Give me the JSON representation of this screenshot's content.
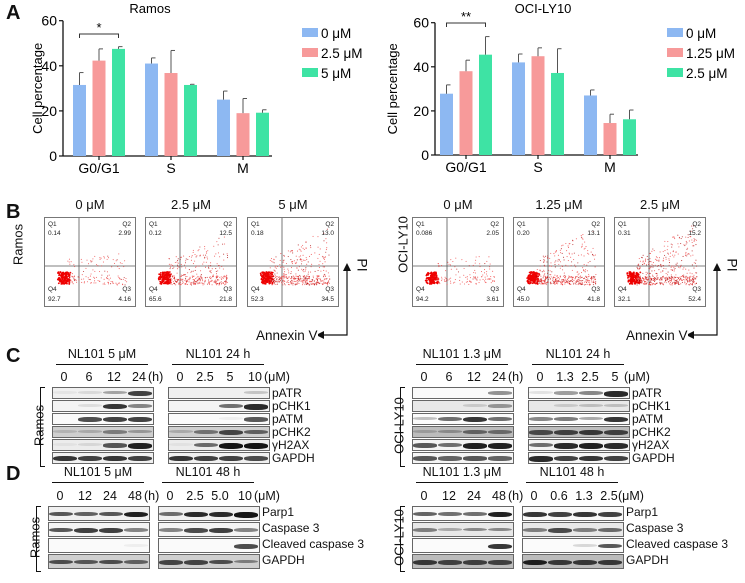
{
  "panels": {
    "A": "A",
    "B": "B",
    "C": "C",
    "D": "D"
  },
  "chart_data": [
    {
      "type": "bar",
      "title": "Ramos",
      "xlabel": "",
      "ylabel": "Cell percentage",
      "ylim": [
        0,
        60
      ],
      "yticks": [
        0,
        20,
        40,
        60
      ],
      "categories": [
        "G0/G1",
        "S",
        "M"
      ],
      "series": [
        {
          "name": "0 μM",
          "color": "#8db8f2",
          "values": [
            31.5,
            41,
            25
          ],
          "errors": [
            5.5,
            2.5,
            3.8
          ]
        },
        {
          "name": "2.5 μM",
          "color": "#f79a9a",
          "values": [
            42.3,
            36.8,
            19
          ],
          "errors": [
            5.2,
            10,
            6.5
          ]
        },
        {
          "name": "5 μM",
          "color": "#3ee3a4",
          "values": [
            47.5,
            31.5,
            19.2
          ],
          "errors": [
            1,
            0.3,
            1.3
          ]
        }
      ],
      "significance": [
        {
          "group": "G0/G1",
          "from": 0,
          "to": 2,
          "label": "*"
        }
      ],
      "legend": "top-right",
      "grid": false
    },
    {
      "type": "bar",
      "title": "OCI-LY10",
      "xlabel": "",
      "ylabel": "Cell percentage",
      "ylim": [
        0,
        60
      ],
      "yticks": [
        0,
        20,
        40,
        60
      ],
      "categories": [
        "G0/G1",
        "S",
        "M"
      ],
      "series": [
        {
          "name": "0 μM",
          "color": "#8db8f2",
          "values": [
            27.8,
            42,
            27
          ],
          "errors": [
            4,
            3.8,
            2.5
          ]
        },
        {
          "name": "1.25 μM",
          "color": "#f79a9a",
          "values": [
            38,
            44.8,
            14.5
          ],
          "errors": [
            5,
            3.8,
            4
          ]
        },
        {
          "name": "2.5 μM",
          "color": "#3ee3a4",
          "values": [
            45.5,
            37.2,
            16.2
          ],
          "errors": [
            8.2,
            11,
            4.2
          ]
        }
      ],
      "significance": [
        {
          "group": "G0/G1",
          "from": 0,
          "to": 2,
          "label": "**"
        }
      ],
      "legend": "top-right",
      "grid": false
    }
  ],
  "flow": {
    "x_axis_label": "Annexin V",
    "y_axis_label": "PI",
    "groups": [
      {
        "cell_line": "Ramos",
        "plots": [
          {
            "title": "0 μM",
            "Q1": "0.14",
            "Q2": "2.99",
            "Q3": "4.16",
            "Q4": "92.7",
            "density": 0.15
          },
          {
            "title": "2.5 μM",
            "Q1": "0.12",
            "Q2": "12.5",
            "Q3": "21.8",
            "Q4": "65.6",
            "density": 0.55
          },
          {
            "title": "5 μM",
            "Q1": "0.18",
            "Q2": "13.0",
            "Q3": "34.5",
            "Q4": "52.3",
            "density": 0.7
          }
        ]
      },
      {
        "cell_line": "OCI-LY10",
        "plots": [
          {
            "title": "0 μM",
            "Q1": "0.086",
            "Q2": "2.05",
            "Q3": "3.61",
            "Q4": "94.2",
            "density": 0.12
          },
          {
            "title": "1.25 μM",
            "Q1": "0.20",
            "Q2": "13.1",
            "Q3": "41.8",
            "Q4": "45.0",
            "density": 0.7
          },
          {
            "title": "2.5 μM",
            "Q1": "0.31",
            "Q2": "15.2",
            "Q3": "52.4",
            "Q4": "32.1",
            "density": 0.85
          }
        ]
      }
    ],
    "quadrant_names": {
      "q1": "Q1",
      "q2": "Q2",
      "q3": "Q3",
      "q4": "Q4"
    }
  },
  "westernC": {
    "groups": [
      {
        "cell_line": "Ramos",
        "left": {
          "header": "NL101 5 μM",
          "lanes": [
            "0",
            "6",
            "12",
            "24"
          ],
          "unit": "(h)"
        },
        "right": {
          "header": "NL101 24 h",
          "lanes": [
            "0",
            "2.5",
            "5",
            "10"
          ],
          "unit": "(μM)"
        },
        "proteins": [
          "pATR",
          "pCHK1",
          "pATM",
          "pCHK2",
          "γH2AX",
          "GAPDH"
        ]
      },
      {
        "cell_line": "OCI-LY10",
        "left": {
          "header": "NL101  1.3 μM",
          "lanes": [
            "0",
            "6",
            "12",
            "24"
          ],
          "unit": "(h)"
        },
        "right": {
          "header": "NL101 24 h",
          "lanes": [
            "0",
            "1.3",
            "2.5",
            "5"
          ],
          "unit": "(μM)"
        },
        "proteins": [
          "pATR",
          "pCHK1",
          "pATM",
          "pCHK2",
          "γH2AX",
          "GAPDH"
        ]
      }
    ]
  },
  "westernD": {
    "groups": [
      {
        "cell_line": "Ramos",
        "left": {
          "header": "NL101 5 μM",
          "lanes": [
            "0",
            "12",
            "24",
            "48"
          ],
          "unit": "(h)"
        },
        "right": {
          "header": "NL101 48 h",
          "lanes": [
            "0",
            "2.5",
            "5.0",
            "10"
          ],
          "unit": "(μM)"
        },
        "proteins": [
          "Parp1",
          "Caspase 3",
          "Cleaved caspase 3",
          "GAPDH"
        ]
      },
      {
        "cell_line": "OCI-LY10",
        "left": {
          "header": "NL101  1.3 μM",
          "lanes": [
            "0",
            "12",
            "24",
            "48"
          ],
          "unit": "(h)"
        },
        "right": {
          "header": "NL101 48 h",
          "lanes": [
            "0",
            "0.6",
            "1.3",
            "2.5"
          ],
          "unit": "(μM)"
        },
        "proteins": [
          "Parp1",
          "Caspase 3",
          "Cleaved caspase 3",
          "GAPDH"
        ]
      }
    ]
  }
}
